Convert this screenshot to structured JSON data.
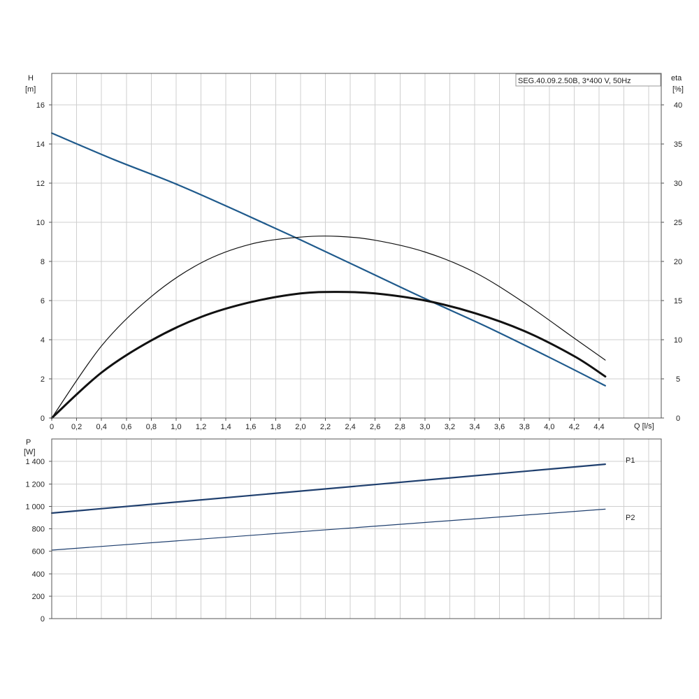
{
  "chart_data": [
    {
      "type": "line",
      "model_label": "SEG.40.09.2.50B, 3*400 V, 50Hz",
      "x_axis": {
        "label": "Q [l/s]",
        "ticks": [
          "0",
          "0,2",
          "0,4",
          "0,6",
          "0,8",
          "1,0",
          "1,2",
          "1,4",
          "1,6",
          "1,8",
          "2,0",
          "2,2",
          "2,4",
          "2,6",
          "2,8",
          "3,0",
          "3,2",
          "3,4",
          "3,6",
          "3,8",
          "4,0",
          "4,2",
          "4,4"
        ],
        "range": [
          0,
          4.9
        ]
      },
      "y_axis_left": {
        "label": "H",
        "unit": "[m]",
        "ticks": [
          "0",
          "2",
          "4",
          "6",
          "8",
          "10",
          "12",
          "14",
          "16"
        ],
        "range": [
          0,
          17.6
        ]
      },
      "y_axis_right": {
        "label": "eta",
        "unit": "[%]",
        "ticks": [
          "0",
          "5",
          "10",
          "15",
          "20",
          "25",
          "30",
          "35",
          "40"
        ],
        "range": [
          0,
          44
        ]
      },
      "grid": true,
      "series": [
        {
          "axis": "left",
          "color": "#1f5a8c",
          "weight": "medium",
          "x": [
            0,
            0.5,
            1.0,
            1.5,
            2.0,
            2.5,
            3.0,
            3.5,
            4.0,
            4.45
          ],
          "y": [
            14.55,
            13.2,
            11.95,
            10.55,
            9.1,
            7.6,
            6.1,
            4.65,
            3.1,
            1.65
          ]
        },
        {
          "axis": "right",
          "color": "#111111",
          "weight": "thin",
          "x": [
            0,
            0.4,
            0.8,
            1.2,
            1.6,
            2.0,
            2.3,
            2.6,
            3.0,
            3.4,
            3.8,
            4.2,
            4.45
          ],
          "y": [
            0,
            9.2,
            15.5,
            19.8,
            22.2,
            23.1,
            23.2,
            22.7,
            21.2,
            18.6,
            14.7,
            10.2,
            7.4
          ]
        },
        {
          "axis": "right",
          "color": "#111111",
          "weight": "bold",
          "x": [
            0,
            0.4,
            0.8,
            1.2,
            1.6,
            2.0,
            2.3,
            2.6,
            3.0,
            3.4,
            3.8,
            4.2,
            4.45
          ],
          "y": [
            0,
            5.8,
            9.9,
            12.9,
            14.8,
            15.9,
            16.1,
            15.9,
            15.0,
            13.4,
            11.1,
            7.9,
            5.3
          ]
        }
      ]
    },
    {
      "type": "line",
      "x_axis": {
        "ticks": [],
        "range": [
          0,
          4.9
        ]
      },
      "y_axis_left": {
        "label": "P",
        "unit": "[W]",
        "ticks": [
          "0",
          "200",
          "400",
          "600",
          "800",
          "1 000",
          "1 200",
          "1 400"
        ],
        "range": [
          0,
          1600
        ]
      },
      "grid": true,
      "series": [
        {
          "name": "P1",
          "color": "#1f3f6e",
          "weight": "medium",
          "x": [
            0,
            4.45
          ],
          "y": [
            940,
            1375
          ]
        },
        {
          "name": "P2",
          "color": "#1f3f6e",
          "weight": "thin",
          "x": [
            0,
            4.45
          ],
          "y": [
            610,
            975
          ]
        }
      ]
    }
  ]
}
